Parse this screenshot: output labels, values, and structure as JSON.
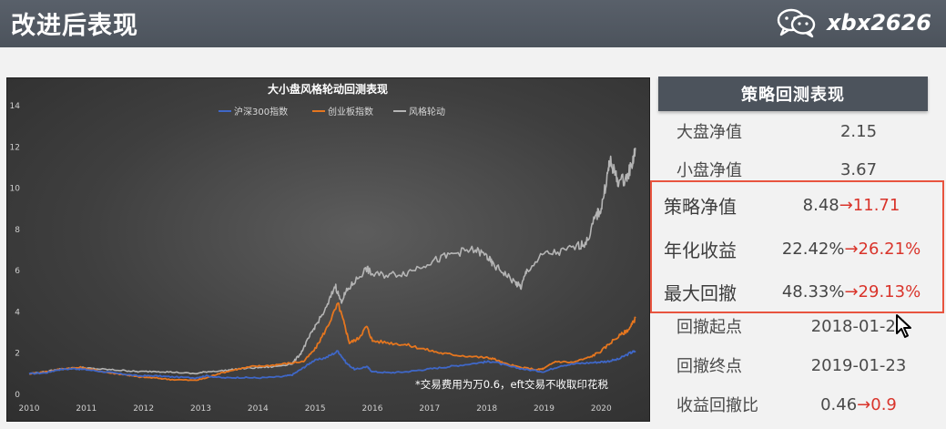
{
  "header": {
    "title": "改进后表现",
    "brand": "xbx2626",
    "brand_icon": "wechat-icon"
  },
  "chart_data": {
    "type": "line",
    "title": "大小盘风格轮动回测表现",
    "legend_position": "top",
    "grid": false,
    "ylim": [
      0,
      14
    ],
    "yticks": [
      "0",
      "2",
      "4",
      "6",
      "8",
      "10",
      "12",
      "14"
    ],
    "xticks": [
      "2010",
      "2011",
      "2012",
      "2013",
      "2014",
      "2015",
      "2016",
      "2017",
      "2018",
      "2019",
      "2020"
    ],
    "xlim": [
      2010.0,
      2020.6
    ],
    "annotation": "*交易费用为万0.6，eft交易不收取印花税",
    "series": [
      {
        "name": "沪深300指数",
        "color": "#3f67c7",
        "points": [
          [
            2010.0,
            1.0
          ],
          [
            2010.3,
            1.05
          ],
          [
            2010.5,
            1.2
          ],
          [
            2010.8,
            1.25
          ],
          [
            2011.0,
            1.2
          ],
          [
            2011.3,
            1.1
          ],
          [
            2011.6,
            1.0
          ],
          [
            2011.9,
            0.9
          ],
          [
            2012.2,
            0.9
          ],
          [
            2012.5,
            0.85
          ],
          [
            2012.9,
            0.8
          ],
          [
            2013.1,
            0.9
          ],
          [
            2013.4,
            0.8
          ],
          [
            2013.7,
            0.82
          ],
          [
            2014.0,
            0.8
          ],
          [
            2014.4,
            0.85
          ],
          [
            2014.6,
            0.95
          ],
          [
            2014.8,
            1.3
          ],
          [
            2014.95,
            1.6
          ],
          [
            2015.2,
            1.8
          ],
          [
            2015.4,
            2.1
          ],
          [
            2015.55,
            1.5
          ],
          [
            2015.7,
            1.2
          ],
          [
            2015.9,
            1.35
          ],
          [
            2016.0,
            1.1
          ],
          [
            2016.3,
            1.05
          ],
          [
            2016.6,
            1.1
          ],
          [
            2016.9,
            1.2
          ],
          [
            2017.2,
            1.3
          ],
          [
            2017.5,
            1.4
          ],
          [
            2017.9,
            1.55
          ],
          [
            2018.1,
            1.6
          ],
          [
            2018.4,
            1.35
          ],
          [
            2018.7,
            1.2
          ],
          [
            2019.0,
            1.1
          ],
          [
            2019.3,
            1.4
          ],
          [
            2019.6,
            1.5
          ],
          [
            2019.9,
            1.55
          ],
          [
            2020.1,
            1.6
          ],
          [
            2020.3,
            1.7
          ],
          [
            2020.5,
            2.0
          ],
          [
            2020.6,
            2.1
          ]
        ]
      },
      {
        "name": "创业板指数",
        "color": "#e5761f",
        "points": [
          [
            2010.0,
            1.0
          ],
          [
            2010.3,
            1.1
          ],
          [
            2010.6,
            1.25
          ],
          [
            2010.9,
            1.3
          ],
          [
            2011.1,
            1.2
          ],
          [
            2011.4,
            1.05
          ],
          [
            2011.7,
            0.95
          ],
          [
            2011.9,
            0.85
          ],
          [
            2012.2,
            0.8
          ],
          [
            2012.5,
            0.72
          ],
          [
            2012.9,
            0.68
          ],
          [
            2013.1,
            0.8
          ],
          [
            2013.3,
            1.0
          ],
          [
            2013.6,
            1.2
          ],
          [
            2013.9,
            1.35
          ],
          [
            2014.2,
            1.4
          ],
          [
            2014.5,
            1.5
          ],
          [
            2014.8,
            1.6
          ],
          [
            2015.0,
            2.2
          ],
          [
            2015.2,
            3.2
          ],
          [
            2015.4,
            4.4
          ],
          [
            2015.5,
            3.5
          ],
          [
            2015.6,
            2.5
          ],
          [
            2015.75,
            2.7
          ],
          [
            2015.9,
            3.3
          ],
          [
            2016.0,
            2.6
          ],
          [
            2016.3,
            2.5
          ],
          [
            2016.6,
            2.4
          ],
          [
            2016.9,
            2.2
          ],
          [
            2017.2,
            2.0
          ],
          [
            2017.5,
            1.9
          ],
          [
            2017.9,
            1.8
          ],
          [
            2018.1,
            1.75
          ],
          [
            2018.3,
            1.5
          ],
          [
            2018.6,
            1.3
          ],
          [
            2018.9,
            1.2
          ],
          [
            2019.0,
            1.25
          ],
          [
            2019.2,
            1.6
          ],
          [
            2019.5,
            1.55
          ],
          [
            2019.8,
            1.8
          ],
          [
            2020.0,
            2.1
          ],
          [
            2020.2,
            2.6
          ],
          [
            2020.4,
            3.0
          ],
          [
            2020.5,
            3.2
          ],
          [
            2020.6,
            3.7
          ]
        ]
      },
      {
        "name": "风格轮动",
        "color": "#b5b5b5",
        "points": [
          [
            2010.0,
            1.0
          ],
          [
            2010.3,
            1.1
          ],
          [
            2010.6,
            1.25
          ],
          [
            2010.9,
            1.3
          ],
          [
            2011.1,
            1.25
          ],
          [
            2011.4,
            1.2
          ],
          [
            2011.7,
            1.15
          ],
          [
            2011.9,
            1.1
          ],
          [
            2012.2,
            1.12
          ],
          [
            2012.5,
            1.08
          ],
          [
            2012.9,
            1.0
          ],
          [
            2013.1,
            1.1
          ],
          [
            2013.4,
            1.15
          ],
          [
            2013.7,
            1.25
          ],
          [
            2014.0,
            1.3
          ],
          [
            2014.3,
            1.35
          ],
          [
            2014.6,
            1.5
          ],
          [
            2014.75,
            2.0
          ],
          [
            2014.9,
            2.8
          ],
          [
            2015.0,
            3.3
          ],
          [
            2015.2,
            4.2
          ],
          [
            2015.35,
            5.3
          ],
          [
            2015.45,
            4.5
          ],
          [
            2015.55,
            5.0
          ],
          [
            2015.7,
            5.5
          ],
          [
            2015.9,
            6.1
          ],
          [
            2016.0,
            5.8
          ],
          [
            2016.3,
            5.8
          ],
          [
            2016.6,
            5.9
          ],
          [
            2016.9,
            6.3
          ],
          [
            2017.2,
            6.6
          ],
          [
            2017.5,
            6.9
          ],
          [
            2017.8,
            7.0
          ],
          [
            2018.0,
            6.7
          ],
          [
            2018.1,
            6.3
          ],
          [
            2018.3,
            5.9
          ],
          [
            2018.5,
            5.4
          ],
          [
            2018.6,
            5.2
          ],
          [
            2018.7,
            6.0
          ],
          [
            2019.0,
            6.8
          ],
          [
            2019.3,
            6.9
          ],
          [
            2019.6,
            7.2
          ],
          [
            2019.75,
            7.4
          ],
          [
            2019.9,
            8.6
          ],
          [
            2020.0,
            9.0
          ],
          [
            2020.1,
            10.5
          ],
          [
            2020.15,
            11.3
          ],
          [
            2020.2,
            11.0
          ],
          [
            2020.3,
            10.3
          ],
          [
            2020.45,
            10.5
          ],
          [
            2020.55,
            11.3
          ],
          [
            2020.6,
            11.9
          ]
        ]
      }
    ]
  },
  "panel": {
    "title": "策略回测表现",
    "rows": [
      {
        "label": "大盘净值",
        "value": "2.15",
        "arrow": ""
      },
      {
        "label": "小盘净值",
        "value": "3.67",
        "arrow": ""
      },
      {
        "label": "策略净值",
        "value": "8.48",
        "arrow": "→11.71"
      },
      {
        "label": "年化收益",
        "value": "22.42%",
        "arrow": "→26.21%"
      },
      {
        "label": "最大回撤",
        "value": "48.33%",
        "arrow": "→29.13%"
      },
      {
        "label": "回撤起点",
        "value": "2018-01-24",
        "arrow": ""
      },
      {
        "label": "回撤终点",
        "value": "2019-01-23",
        "arrow": ""
      },
      {
        "label": "收益回撤比",
        "value": "0.46",
        "arrow": "→0.9"
      }
    ]
  }
}
